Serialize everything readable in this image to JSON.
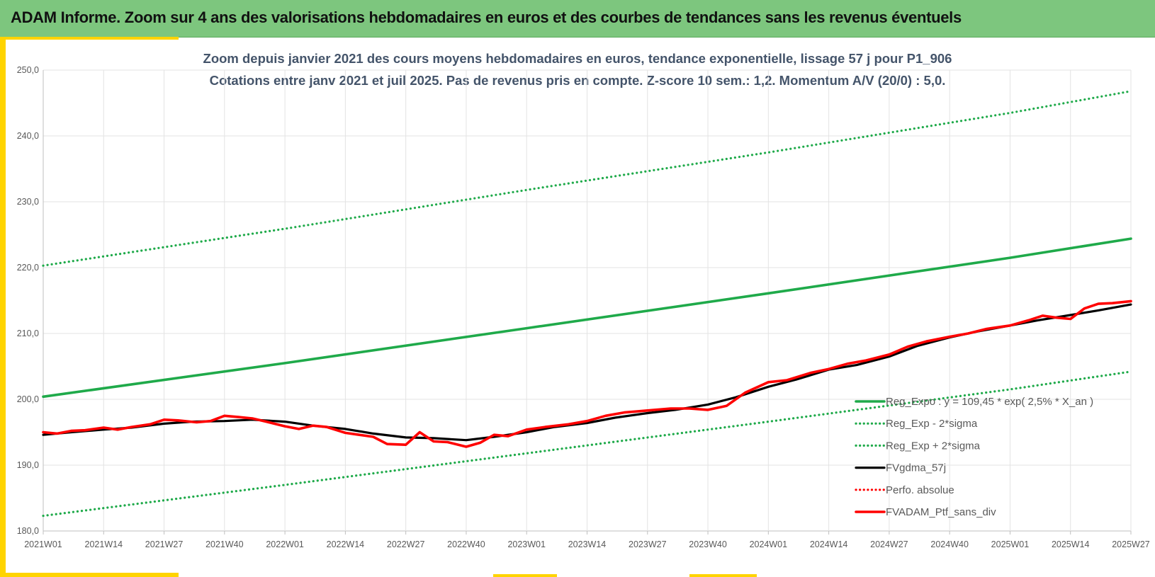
{
  "header": {
    "title": "ADAM Informe. Zoom sur 4 ans des valorisations hebdomadaires en euros et des courbes de tendances sans les revenus éventuels"
  },
  "colors": {
    "header_bg": "#7dc67e",
    "accent_yellow": "#ffd400",
    "trend_green": "#1faa4a",
    "band_green": "#1faa4a",
    "smooth_black": "#000000",
    "portfolio_red": "#ff0000"
  },
  "chart_data": {
    "type": "line",
    "title": "Zoom depuis janvier 2021 des cours moyens hebdomadaires  en euros,  tendance exponentielle, lissage 57 j  pour  P1_906",
    "subtitle": "Cotations  entre janv 2021 et juil 2025. Pas de revenus pris en compte. Z-score 10 sem.: 1,2. Momentum A/V (20/0) : 5,0.",
    "x_ticks": [
      "2021W01",
      "2021W14",
      "2021W27",
      "2021W40",
      "2022W01",
      "2022W14",
      "2022W27",
      "2022W40",
      "2023W01",
      "2023W14",
      "2023W27",
      "2023W40",
      "2024W01",
      "2024W14",
      "2024W27",
      "2024W40",
      "2025W01",
      "2025W14",
      "2025W27"
    ],
    "y_ticks": [
      "180,0",
      "190,0",
      "200,0",
      "210,0",
      "220,0",
      "230,0",
      "240,0",
      "250,0"
    ],
    "ylim": [
      180,
      250
    ],
    "grid": true,
    "legend_position": "bottom-right",
    "series": [
      {
        "name": "Reg_Expo : y = 109,45 * exp( 2,5% *  X_an )",
        "style": "solid",
        "color": "#1faa4a",
        "x": [
          "2021W01",
          "2022W01",
          "2023W01",
          "2024W01",
          "2025W01",
          "2025W27"
        ],
        "values": [
          200.4,
          205.5,
          210.8,
          216.1,
          221.5,
          224.4
        ]
      },
      {
        "name": "Reg_Exp - 2*sigma",
        "style": "dotted",
        "color": "#1faa4a",
        "x": [
          "2021W01",
          "2022W01",
          "2023W01",
          "2024W01",
          "2025W01",
          "2025W27"
        ],
        "values": [
          182.3,
          187.0,
          191.8,
          196.6,
          201.5,
          204.2
        ]
      },
      {
        "name": "Reg_Exp + 2*sigma",
        "style": "dotted",
        "color": "#1faa4a",
        "x": [
          "2021W01",
          "2022W01",
          "2023W01",
          "2024W01",
          "2025W01",
          "2025W27"
        ],
        "values": [
          220.3,
          225.9,
          231.8,
          237.5,
          243.5,
          246.8
        ]
      },
      {
        "name": "FVgdma_57j",
        "style": "solid",
        "color": "#000000",
        "x": [
          "2021W01",
          "2021W07",
          "2021W14",
          "2021W20",
          "2021W27",
          "2021W33",
          "2021W40",
          "2021W46",
          "2022W01",
          "2022W07",
          "2022W14",
          "2022W20",
          "2022W27",
          "2022W33",
          "2022W40",
          "2022W46",
          "2023W01",
          "2023W07",
          "2023W14",
          "2023W20",
          "2023W27",
          "2023W33",
          "2023W40",
          "2023W46",
          "2024W01",
          "2024W07",
          "2024W14",
          "2024W20",
          "2024W27",
          "2024W33",
          "2024W40",
          "2024W46",
          "2025W01",
          "2025W07",
          "2025W14",
          "2025W20",
          "2025W27"
        ],
        "values": [
          194.6,
          195.0,
          195.4,
          195.7,
          196.3,
          196.6,
          196.7,
          196.9,
          196.6,
          196.0,
          195.5,
          194.8,
          194.2,
          194.1,
          193.8,
          194.3,
          195.0,
          195.8,
          196.4,
          197.2,
          197.9,
          198.4,
          199.2,
          200.3,
          201.9,
          203.0,
          204.5,
          205.2,
          206.5,
          208.1,
          209.4,
          210.3,
          211.2,
          212.0,
          212.8,
          213.5,
          214.4
        ]
      },
      {
        "name": "Perfo. absolue",
        "style": "dotted",
        "color": "#ff0000",
        "x": [],
        "values": []
      },
      {
        "name": "FVADAM_Ptf_sans_div",
        "style": "solid",
        "color": "#ff0000",
        "x": [
          "2021W01",
          "2021W04",
          "2021W07",
          "2021W10",
          "2021W14",
          "2021W17",
          "2021W20",
          "2021W24",
          "2021W27",
          "2021W30",
          "2021W34",
          "2021W37",
          "2021W40",
          "2021W43",
          "2021W46",
          "2021W49",
          "2022W01",
          "2022W04",
          "2022W07",
          "2022W10",
          "2022W14",
          "2022W17",
          "2022W20",
          "2022W23",
          "2022W27",
          "2022W30",
          "2022W33",
          "2022W36",
          "2022W40",
          "2022W43",
          "2022W46",
          "2022W49",
          "2023W01",
          "2023W05",
          "2023W10",
          "2023W14",
          "2023W18",
          "2023W22",
          "2023W27",
          "2023W32",
          "2023W36",
          "2023W40",
          "2023W44",
          "2023W48",
          "2024W01",
          "2024W05",
          "2024W10",
          "2024W14",
          "2024W18",
          "2024W22",
          "2024W27",
          "2024W31",
          "2024W35",
          "2024W40",
          "2024W44",
          "2024W48",
          "2025W01",
          "2025W05",
          "2025W08",
          "2025W11",
          "2025W14",
          "2025W17",
          "2025W20",
          "2025W23",
          "2025W27"
        ],
        "values": [
          195.0,
          194.8,
          195.2,
          195.3,
          195.7,
          195.4,
          195.8,
          196.2,
          196.9,
          196.8,
          196.5,
          196.7,
          197.5,
          197.3,
          197.1,
          196.6,
          195.9,
          195.5,
          196.0,
          195.8,
          194.9,
          194.6,
          194.3,
          193.2,
          193.1,
          195.0,
          193.6,
          193.5,
          192.8,
          193.4,
          194.6,
          194.4,
          195.4,
          195.8,
          196.2,
          196.7,
          197.5,
          198.0,
          198.3,
          198.6,
          198.6,
          198.4,
          199.0,
          201.0,
          202.6,
          202.9,
          204.0,
          204.6,
          205.4,
          205.9,
          206.8,
          208.0,
          208.8,
          209.5,
          210.0,
          210.7,
          211.2,
          212.0,
          212.7,
          212.4,
          212.2,
          213.8,
          214.5,
          214.6,
          214.9
        ]
      }
    ]
  }
}
